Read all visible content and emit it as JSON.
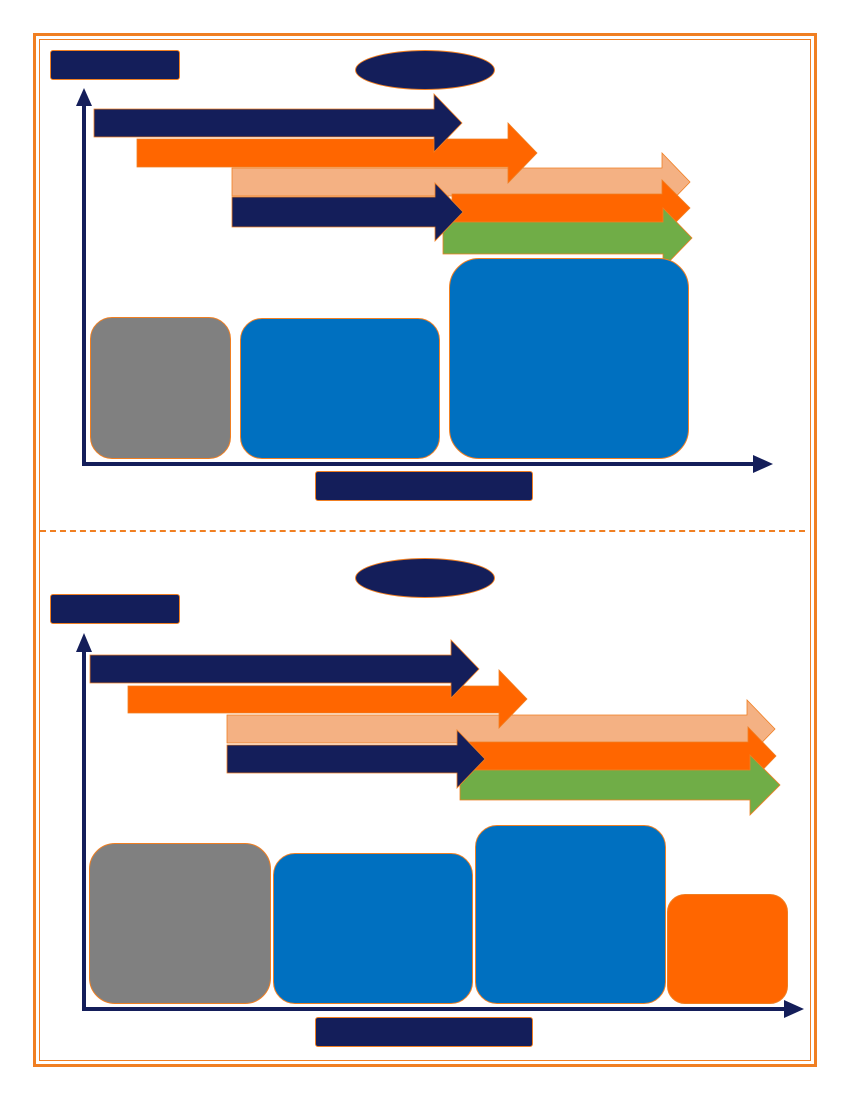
{
  "colors": {
    "navy": "#141e5a",
    "orange": "#ff6600",
    "peach": "#f4b183",
    "green": "#70ad47",
    "blue": "#0070c0",
    "gray": "#808080",
    "border": "#f07f22"
  },
  "panels": [
    {
      "title": "",
      "y_axis_label": "",
      "x_axis_label": "",
      "arrows": [
        "navy",
        "orange",
        "peach",
        "navy",
        "orange",
        "green"
      ],
      "blocks": [
        "gray",
        "blue",
        "blue"
      ]
    },
    {
      "title": "",
      "y_axis_label": "",
      "x_axis_label": "",
      "arrows": [
        "navy",
        "orange",
        "peach",
        "navy",
        "orange",
        "green"
      ],
      "blocks": [
        "gray",
        "blue",
        "blue",
        "orange"
      ]
    }
  ]
}
